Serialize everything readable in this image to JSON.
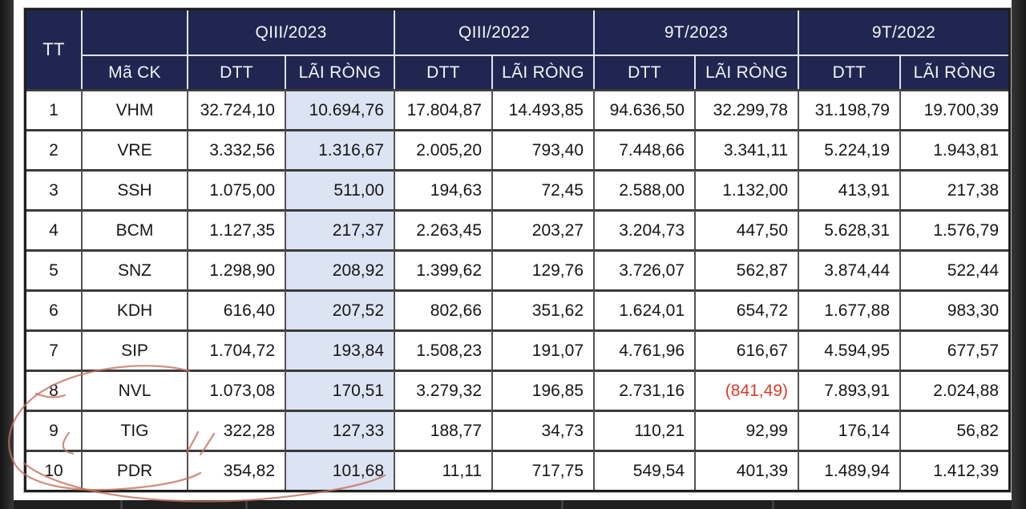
{
  "header": {
    "tt": "TT",
    "ma_ck": "Mã CK",
    "groups": [
      {
        "label": "QIII/2023"
      },
      {
        "label": "QIII/2022"
      },
      {
        "label": "9T/2023"
      },
      {
        "label": "9T/2022"
      }
    ],
    "sub": [
      "DTT",
      "LÃI RÒNG"
    ]
  },
  "rows": [
    {
      "tt": "1",
      "ticker": "VHM",
      "values": [
        "32.724,10",
        "10.694,76",
        "17.804,87",
        "14.493,85",
        "94.636,50",
        "32.299,78",
        "31.198,79",
        "19.700,39"
      ]
    },
    {
      "tt": "2",
      "ticker": "VRE",
      "values": [
        "3.332,56",
        "1.316,67",
        "2.005,20",
        "793,40",
        "7.448,66",
        "3.341,11",
        "5.224,19",
        "1.943,81"
      ]
    },
    {
      "tt": "3",
      "ticker": "SSH",
      "values": [
        "1.075,00",
        "511,00",
        "194,63",
        "72,45",
        "2.588,00",
        "1.132,00",
        "413,91",
        "217,38"
      ]
    },
    {
      "tt": "4",
      "ticker": "BCM",
      "values": [
        "1.127,35",
        "217,37",
        "2.263,45",
        "203,27",
        "3.204,73",
        "447,50",
        "5.628,31",
        "1.576,79"
      ]
    },
    {
      "tt": "5",
      "ticker": "SNZ",
      "values": [
        "1.298,90",
        "208,92",
        "1.399,62",
        "129,76",
        "3.726,07",
        "562,87",
        "3.874,44",
        "522,44"
      ]
    },
    {
      "tt": "6",
      "ticker": "KDH",
      "values": [
        "616,40",
        "207,52",
        "802,66",
        "351,62",
        "1.624,01",
        "654,72",
        "1.677,88",
        "983,30"
      ]
    },
    {
      "tt": "7",
      "ticker": "SIP",
      "values": [
        "1.704,72",
        "193,84",
        "1.508,23",
        "191,07",
        "4.761,96",
        "616,67",
        "4.594,95",
        "677,57"
      ]
    },
    {
      "tt": "8",
      "ticker": "NVL",
      "values": [
        "1.073,08",
        "170,51",
        "3.279,32",
        "196,85",
        "2.731,16",
        "(841,49)",
        "7.893,91",
        "2.024,88"
      ],
      "neg_index": 5
    },
    {
      "tt": "9",
      "ticker": "TIG",
      "values": [
        "322,28",
        "127,33",
        "188,77",
        "34,73",
        "110,21",
        "92,99",
        "176,14",
        "56,82"
      ]
    },
    {
      "tt": "10",
      "ticker": "PDR",
      "values": [
        "354,82",
        "101,68",
        "11,11",
        "717,75",
        "549,54",
        "401,39",
        "1.489,94",
        "1.412,39"
      ]
    }
  ],
  "colors": {
    "header_bg": "#1f2750",
    "header_line": "#dfe3ef",
    "highlight_col": "#dce3f2",
    "negative": "#d93b2b",
    "annotation": "#c4705e"
  },
  "annotation": {
    "name": "hand-drawn red circle around rows 8-10",
    "color": "#c4705e"
  }
}
